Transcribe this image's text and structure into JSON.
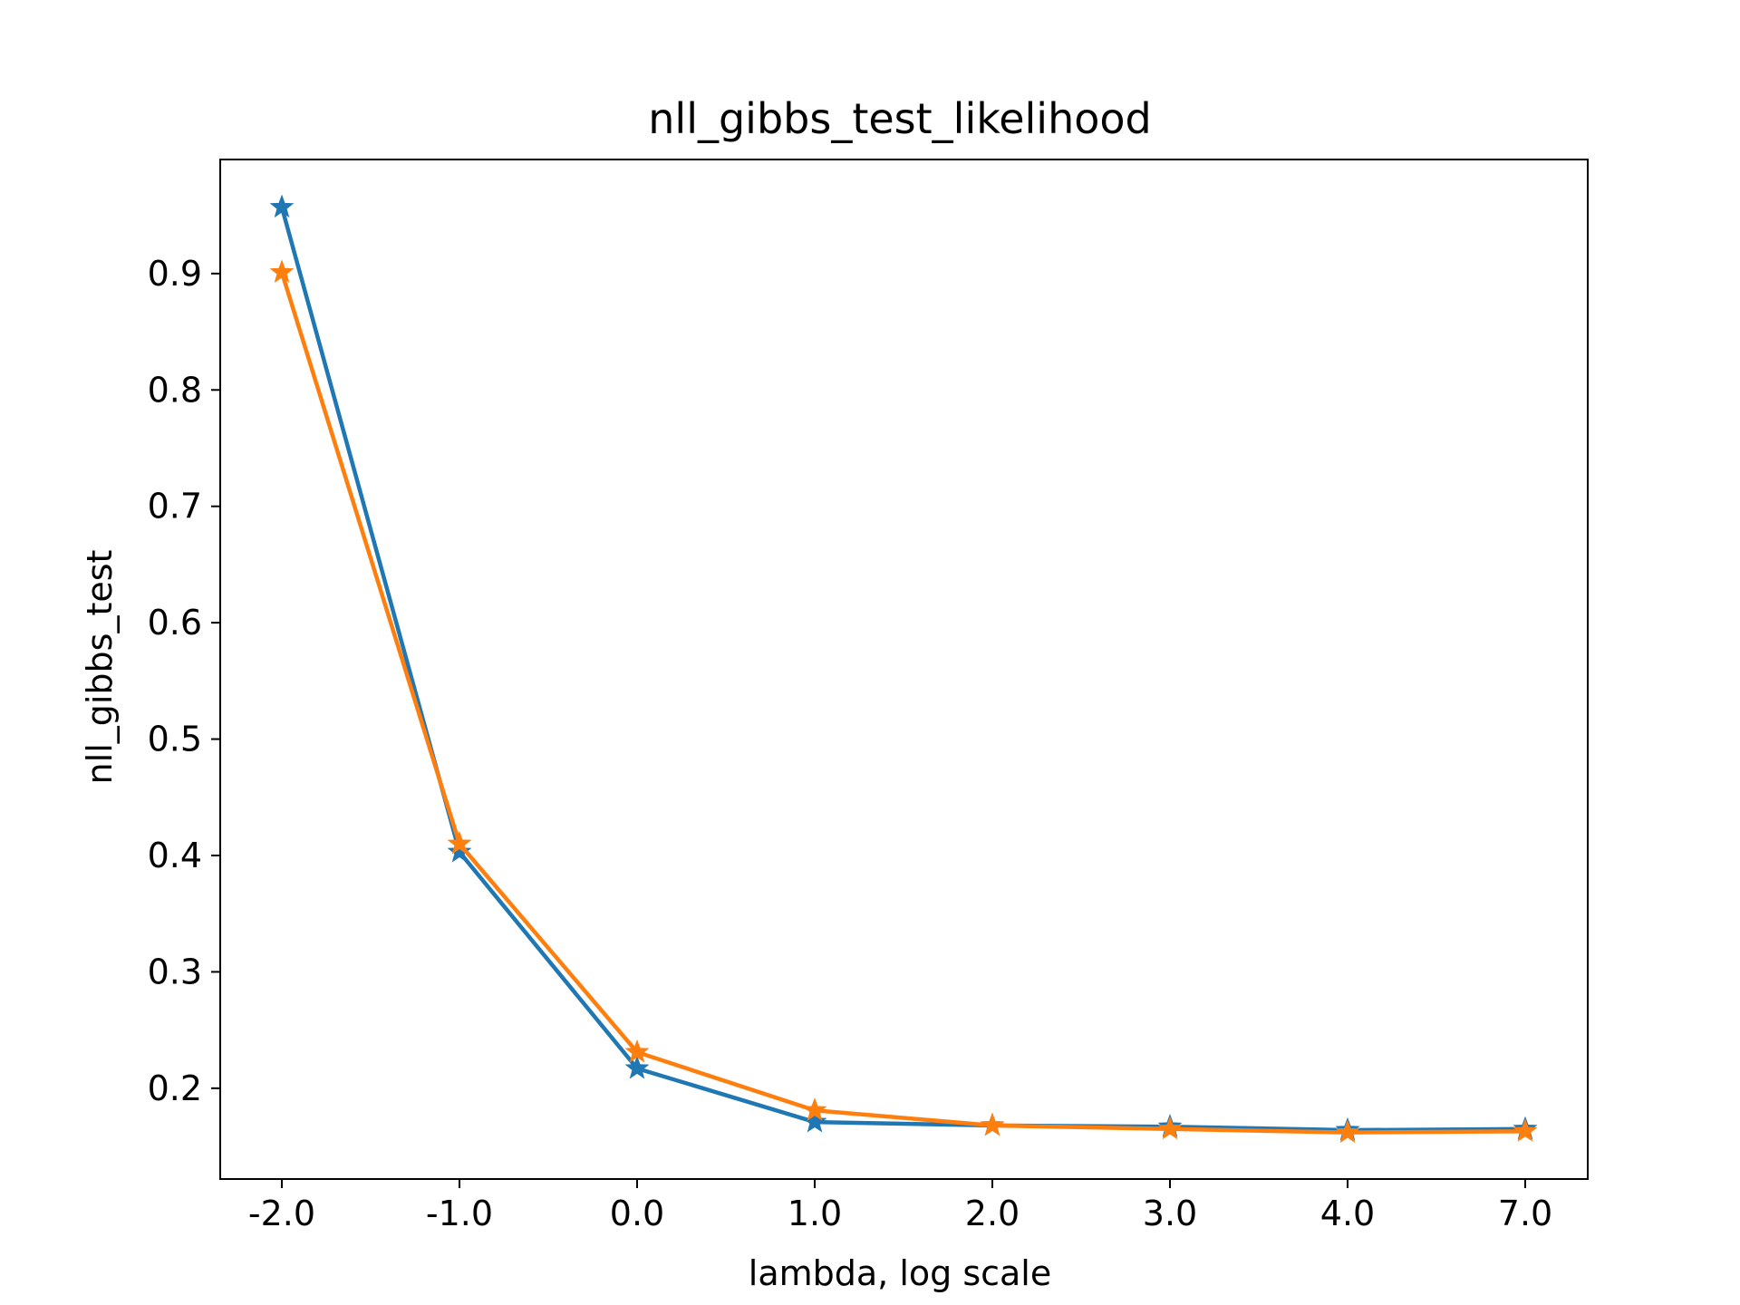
{
  "chart_data": {
    "type": "line",
    "title": "nll_gibbs_test_likelihood",
    "xlabel": "lambda, log scale",
    "ylabel": "nll_gibbs_test",
    "categories": [
      "-2.0",
      "-1.0",
      "0.0",
      "1.0",
      "2.0",
      "3.0",
      "4.0",
      "7.0"
    ],
    "ylim": [
      0.122,
      0.998
    ],
    "yticks": [
      0.2,
      0.3,
      0.4,
      0.5,
      0.6,
      0.7,
      0.8,
      0.9
    ],
    "yticklabels": [
      "0.2",
      "0.3",
      "0.4",
      "0.5",
      "0.6",
      "0.7",
      "0.8",
      "0.9"
    ],
    "grid": false,
    "marker": "star",
    "series": [
      {
        "color": "#1f77b4",
        "values": [
          0.957,
          0.403,
          0.217,
          0.171,
          0.168,
          0.167,
          0.164,
          0.165
        ]
      },
      {
        "color": "#ff7f0e",
        "values": [
          0.901,
          0.41,
          0.231,
          0.181,
          0.168,
          0.165,
          0.162,
          0.163
        ]
      }
    ]
  }
}
